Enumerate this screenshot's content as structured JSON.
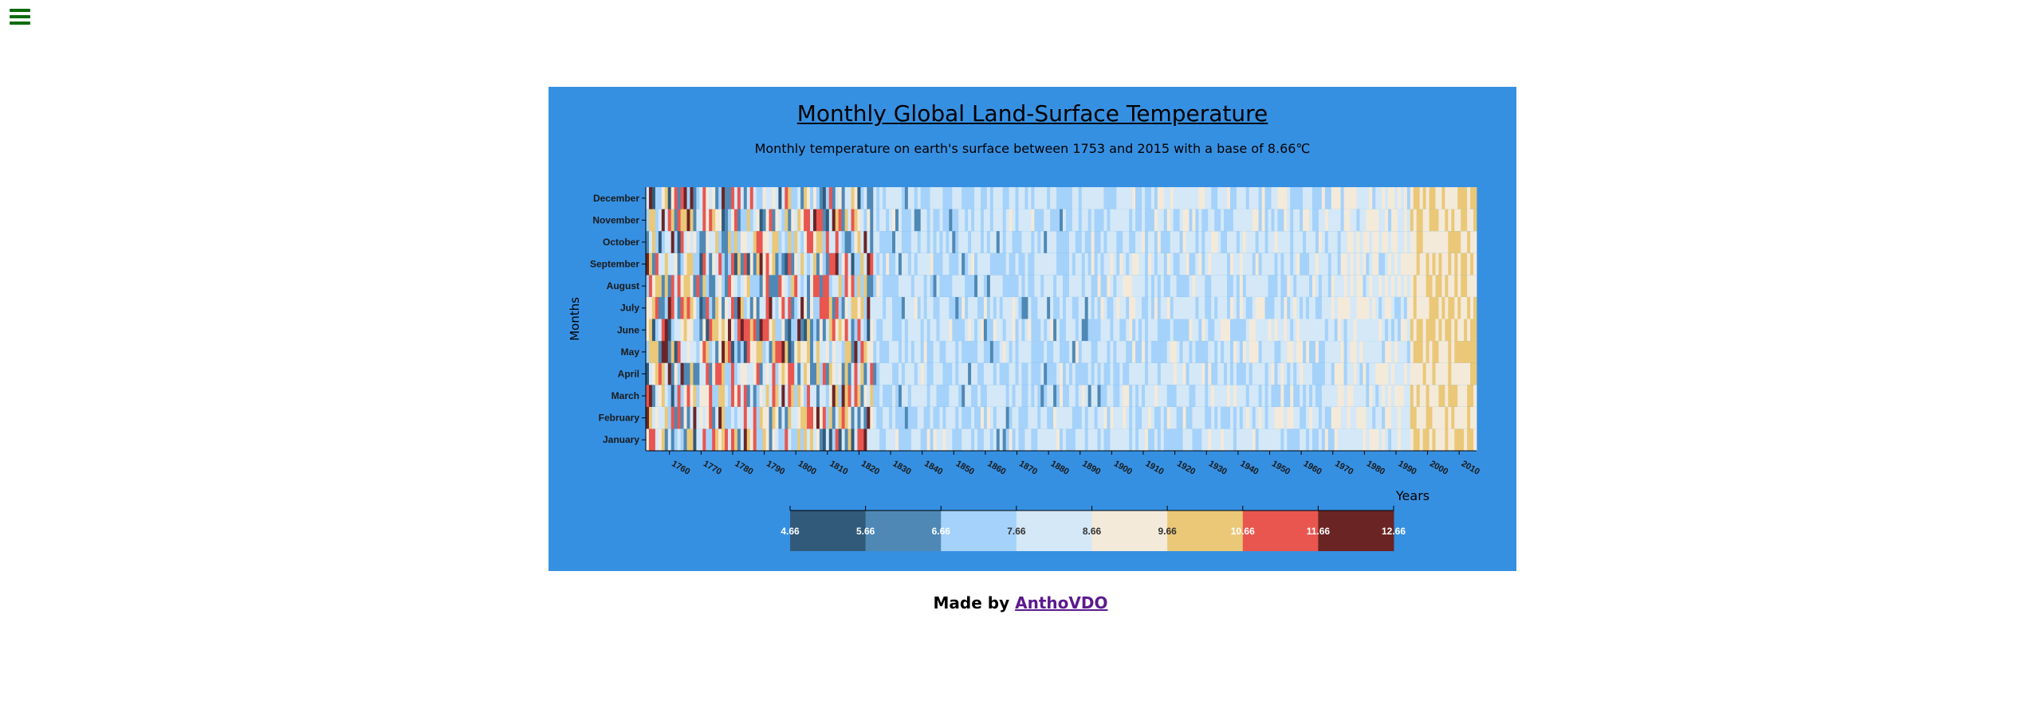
{
  "nav": {
    "menu_icon": "hamburger-menu-icon",
    "menu_icon_color": "#0b6b0b"
  },
  "panel": {
    "background": "#3690e2"
  },
  "chart_data": {
    "type": "heatmap",
    "title": "Monthly Global Land-Surface Temperature",
    "subtitle": "Monthly temperature on earth's surface between 1753 and 2015 with a base of 8.66℃",
    "xlabel": "Years",
    "ylabel": "Months",
    "base_temperature": 8.66,
    "x_range": [
      1753,
      2015
    ],
    "x_ticks": [
      "1760",
      "1770",
      "1780",
      "1790",
      "1800",
      "1810",
      "1820",
      "1830",
      "1840",
      "1850",
      "1860",
      "1870",
      "1880",
      "1890",
      "1900",
      "1910",
      "1920",
      "1930",
      "1940",
      "1950",
      "1960",
      "1970",
      "1980",
      "1990",
      "2000",
      "2010"
    ],
    "y_ticks": [
      "January",
      "February",
      "March",
      "April",
      "May",
      "June",
      "July",
      "August",
      "September",
      "October",
      "November",
      "December"
    ],
    "legend": {
      "ticks": [
        "4.66",
        "5.66",
        "6.66",
        "7.66",
        "8.66",
        "9.66",
        "10.66",
        "11.66",
        "12.66"
      ],
      "colors": [
        "#315a7a",
        "#4f88b5",
        "#a5d2fa",
        "#d4e8f7",
        "#f4eada",
        "#eac878",
        "#e8564f",
        "#6b2424"
      ],
      "placement": "bottom-center"
    },
    "grid": false,
    "color_trend": "mostly light blue/neutral in early 1800s-1900s with scattered dark blue and red in 1750s-1820s; yellowish (warmer) cells dominate after 1990"
  },
  "footer": {
    "prefix": "Made by",
    "author": "AnthoVDO"
  }
}
